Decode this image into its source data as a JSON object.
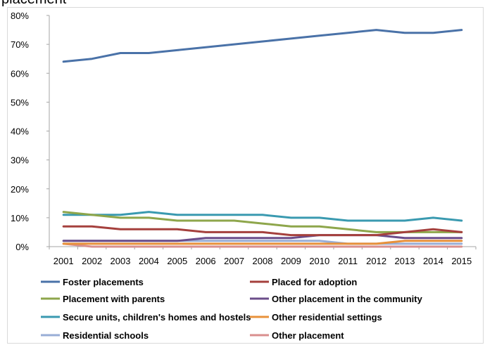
{
  "header": {
    "title_fragment": "placement"
  },
  "chart_data": {
    "type": "line",
    "title": "",
    "xlabel": "",
    "ylabel": "",
    "x": [
      "2001",
      "2002",
      "2003",
      "2004",
      "2005",
      "2006",
      "2007",
      "2008",
      "2009",
      "2010",
      "2011",
      "2012",
      "2013",
      "2014",
      "2015"
    ],
    "ylim": [
      0,
      80
    ],
    "yticks": [
      "0%",
      "10%",
      "20%",
      "30%",
      "40%",
      "50%",
      "60%",
      "70%",
      "80%"
    ],
    "grid": false,
    "legend_position": "bottom",
    "series": [
      {
        "name": "Foster placements",
        "color": "#4a72a8",
        "values": [
          64,
          65,
          67,
          67,
          68,
          69,
          70,
          71,
          72,
          73,
          74,
          75,
          74,
          74,
          75
        ]
      },
      {
        "name": "Placed for adoption",
        "color": "#a5403d",
        "values": [
          7,
          7,
          6,
          6,
          6,
          5,
          5,
          5,
          4,
          4,
          4,
          4,
          5,
          6,
          5
        ]
      },
      {
        "name": "Placement with parents",
        "color": "#8ea64b",
        "values": [
          12,
          11,
          10,
          10,
          9,
          9,
          9,
          8,
          7,
          7,
          6,
          5,
          5,
          5,
          5
        ]
      },
      {
        "name": "Other placement in the community",
        "color": "#6b4d8a",
        "values": [
          2,
          2,
          2,
          2,
          2,
          3,
          3,
          3,
          3,
          4,
          4,
          4,
          3,
          3,
          3
        ]
      },
      {
        "name": "Secure units, children's homes and hostels",
        "color": "#3a9ab0",
        "values": [
          11,
          11,
          11,
          12,
          11,
          11,
          11,
          11,
          10,
          10,
          9,
          9,
          9,
          10,
          9
        ]
      },
      {
        "name": "Other residential settings",
        "color": "#e8913a",
        "values": [
          1,
          1,
          1,
          1,
          1,
          1,
          1,
          1,
          1,
          1,
          1,
          1,
          2,
          2,
          2
        ]
      },
      {
        "name": "Residential schools",
        "color": "#98aed6",
        "values": [
          2,
          2,
          2,
          2,
          2,
          2,
          2,
          2,
          2,
          2,
          1,
          1,
          1,
          1,
          1
        ]
      },
      {
        "name": "Other placement",
        "color": "#d98f8e",
        "values": [
          1,
          0,
          0,
          0,
          0,
          0,
          0,
          0,
          0,
          0,
          0,
          0,
          0,
          0,
          0
        ]
      }
    ]
  }
}
